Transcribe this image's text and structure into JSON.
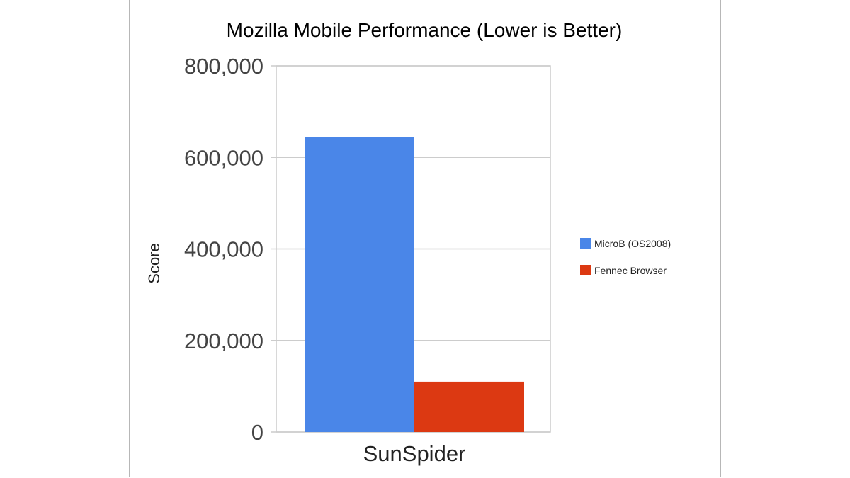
{
  "chart_data": {
    "type": "bar",
    "title": "Mozilla Mobile Performance (Lower is Better)",
    "xlabel": "",
    "ylabel": "Score",
    "categories": [
      "SunSpider"
    ],
    "series": [
      {
        "name": "MicroB (OS2008)",
        "values": [
          645000
        ],
        "color": "#4a86e8"
      },
      {
        "name": "Fennec Browser",
        "values": [
          110000
        ],
        "color": "#dc3912"
      }
    ],
    "ylim": [
      0,
      800000
    ],
    "yticks": [
      0,
      200000,
      400000,
      600000,
      800000
    ],
    "ytick_labels": [
      "0",
      "200,000",
      "400,000",
      "600,000",
      "800,000"
    ],
    "grid": true,
    "legend_position": "right"
  }
}
